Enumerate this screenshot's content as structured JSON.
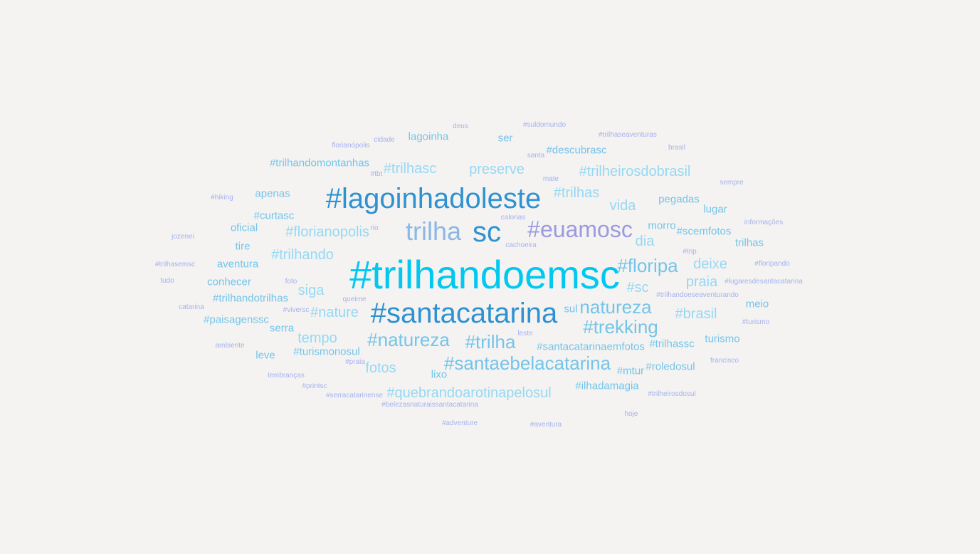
{
  "palette": {
    "background": "#f4f3f1",
    "c1": "#00c8f0",
    "c2": "#2e92d2",
    "c3": "#74c4ea",
    "c4": "#9a9ae0",
    "c5": "#96d8f4",
    "c6": "#8cb8e6",
    "c7": "#a6b2ee"
  },
  "words": [
    {
      "text": "#trilhandoemsc",
      "color": "c1"
    },
    {
      "text": "#santacatarina",
      "color": "c2"
    },
    {
      "text": "#lagoinhadoleste",
      "color": "c2"
    },
    {
      "text": "sc",
      "color": "c2"
    },
    {
      "text": "trilha",
      "color": "c6"
    },
    {
      "text": "#euamosc",
      "color": "c4"
    },
    {
      "text": "#natureza",
      "color": "c3"
    },
    {
      "text": "natureza",
      "color": "c3"
    },
    {
      "text": "#santaebelacatarina",
      "color": "c3"
    },
    {
      "text": "#trekking",
      "color": "c3"
    },
    {
      "text": "#floripa",
      "color": "c3"
    },
    {
      "text": "#trilha",
      "color": "c3"
    },
    {
      "text": "#quebrandoarotinapelosul",
      "color": "c5"
    },
    {
      "text": "#trilheirosdobrasil",
      "color": "c5"
    },
    {
      "text": "#trilhasc",
      "color": "c5"
    },
    {
      "text": "#florianopolis",
      "color": "c5"
    },
    {
      "text": "#trilhando",
      "color": "c5"
    },
    {
      "text": "preserve",
      "color": "c5"
    },
    {
      "text": "#nature",
      "color": "c5"
    },
    {
      "text": "tempo",
      "color": "c5"
    },
    {
      "text": "fotos",
      "color": "c5"
    },
    {
      "text": "#brasil",
      "color": "c5"
    },
    {
      "text": "vida",
      "color": "c5"
    },
    {
      "text": "deixe",
      "color": "c5"
    },
    {
      "text": "praia",
      "color": "c5"
    },
    {
      "text": "siga",
      "color": "c5"
    },
    {
      "text": "#sc",
      "color": "c5"
    },
    {
      "text": "dia",
      "color": "c5"
    },
    {
      "text": "#trilhas",
      "color": "c5"
    },
    {
      "text": "#santacatarinaemfotos",
      "color": "c3"
    },
    {
      "text": "#ilhadamagia",
      "color": "c3"
    },
    {
      "text": "#trilhandomontanhas",
      "color": "c3"
    },
    {
      "text": "#descubrasc",
      "color": "c3"
    },
    {
      "text": "#paisagenssc",
      "color": "c3"
    },
    {
      "text": "#trilhandotrilhas",
      "color": "c3"
    },
    {
      "text": "#turismonosul",
      "color": "c3"
    },
    {
      "text": "#scemfotos",
      "color": "c3"
    },
    {
      "text": "#roledosul",
      "color": "c3"
    },
    {
      "text": "#trilhassc",
      "color": "c3"
    },
    {
      "text": "#curtasc",
      "color": "c3"
    },
    {
      "text": "#mtur",
      "color": "c3"
    },
    {
      "text": "lagoinha",
      "color": "c3"
    },
    {
      "text": "pegadas",
      "color": "c3"
    },
    {
      "text": "lugar",
      "color": "c3"
    },
    {
      "text": "morro",
      "color": "c3"
    },
    {
      "text": "trilhas",
      "color": "c3"
    },
    {
      "text": "turismo",
      "color": "c3"
    },
    {
      "text": "meio",
      "color": "c3"
    },
    {
      "text": "apenas",
      "color": "c3"
    },
    {
      "text": "oficial",
      "color": "c3"
    },
    {
      "text": "tire",
      "color": "c3"
    },
    {
      "text": "aventura",
      "color": "c3"
    },
    {
      "text": "conhecer",
      "color": "c3"
    },
    {
      "text": "serra",
      "color": "c3"
    },
    {
      "text": "leve",
      "color": "c3"
    },
    {
      "text": "lixo",
      "color": "c3"
    },
    {
      "text": "sul",
      "color": "c3"
    },
    {
      "text": "ser",
      "color": "c3"
    },
    {
      "text": "deus",
      "color": "c7"
    },
    {
      "text": "#suldomundo",
      "color": "c7"
    },
    {
      "text": "#trilhaseaventuras",
      "color": "c7"
    },
    {
      "text": "florianópolis",
      "color": "c7"
    },
    {
      "text": "cidade",
      "color": "c7"
    },
    {
      "text": "brasil",
      "color": "c7"
    },
    {
      "text": "santa",
      "color": "c7"
    },
    {
      "text": "#tbt",
      "color": "c7"
    },
    {
      "text": "mate",
      "color": "c7"
    },
    {
      "text": "sempre",
      "color": "c7"
    },
    {
      "text": "#hiking",
      "color": "c7"
    },
    {
      "text": "calorias",
      "color": "c7"
    },
    {
      "text": "informações",
      "color": "c7"
    },
    {
      "text": "jozenei",
      "color": "c7"
    },
    {
      "text": "rio",
      "color": "c7"
    },
    {
      "text": "cachoeira",
      "color": "c7"
    },
    {
      "text": "#trip",
      "color": "c7"
    },
    {
      "text": "#trilhasemsc",
      "color": "c7"
    },
    {
      "text": "#floripando",
      "color": "c7"
    },
    {
      "text": "tudo",
      "color": "c7"
    },
    {
      "text": "foto",
      "color": "c7"
    },
    {
      "text": "#lugaresdesantacatarina",
      "color": "c7"
    },
    {
      "text": "queime",
      "color": "c7"
    },
    {
      "text": "#trilhandoeseaventurando",
      "color": "c7"
    },
    {
      "text": "catarina",
      "color": "c7"
    },
    {
      "text": "#viversc",
      "color": "c7"
    },
    {
      "text": "#turismo",
      "color": "c7"
    },
    {
      "text": "leste",
      "color": "c7"
    },
    {
      "text": "ambiente",
      "color": "c7"
    },
    {
      "text": "#praia",
      "color": "c7"
    },
    {
      "text": "francisco",
      "color": "c7"
    },
    {
      "text": "lembranças",
      "color": "c7"
    },
    {
      "text": "#printsc",
      "color": "c7"
    },
    {
      "text": "#serracatarinense",
      "color": "c7"
    },
    {
      "text": "#belezasnaturaissantacatarina",
      "color": "c7"
    },
    {
      "text": "#trilheirosdosul",
      "color": "c7"
    },
    {
      "text": "hoje",
      "color": "c7"
    },
    {
      "text": "#adventure",
      "color": "c7"
    },
    {
      "text": "#aventura",
      "color": "c7"
    }
  ]
}
